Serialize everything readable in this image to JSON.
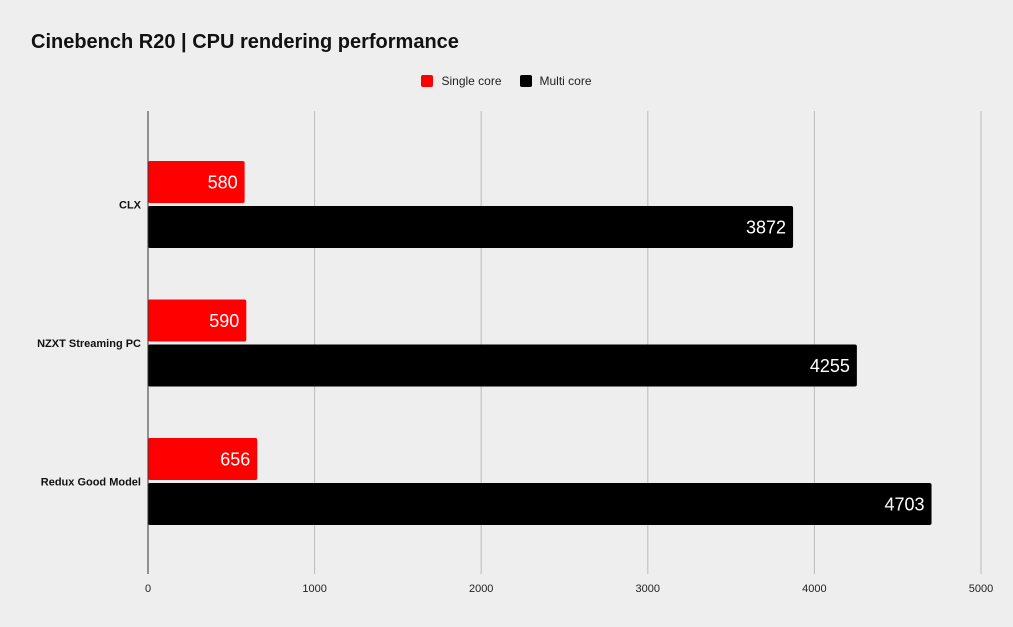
{
  "chart_data": {
    "type": "bar",
    "orientation": "horizontal",
    "title": "Cinebench R20 | CPU rendering performance",
    "xlabel": "",
    "ylabel": "",
    "categories": [
      "CLX",
      "NZXT Streaming PC",
      "Redux Good Model"
    ],
    "series": [
      {
        "name": "Single core",
        "values": [
          580,
          590,
          656
        ],
        "color": "#ff0000"
      },
      {
        "name": "Multi core",
        "values": [
          3872,
          4255,
          4703
        ],
        "color": "#000000"
      }
    ],
    "xlim": [
      0,
      5000
    ],
    "x_ticks": [
      0,
      1000,
      2000,
      3000,
      4000,
      5000
    ],
    "grid": "vertical",
    "legend_position": "top-center",
    "data_labels": true
  },
  "colors": {
    "background": "#eeeeee",
    "gridline": "#bbbbbb",
    "axis": "#333333",
    "label_on_bar": "#ffffff"
  }
}
